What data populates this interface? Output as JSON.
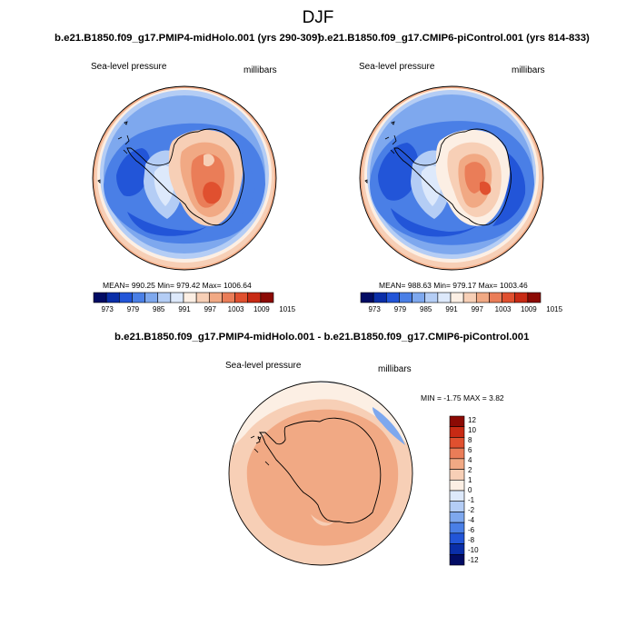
{
  "figure": {
    "title": "DJF"
  },
  "palette": {
    "full_field": [
      "#020c64",
      "#0a2ea8",
      "#2255d8",
      "#4a7fe6",
      "#7ea8ee",
      "#b4cdf5",
      "#dde9fb",
      "#fcefe4",
      "#f7cfb6",
      "#f1a984",
      "#ea7d58",
      "#e0502f",
      "#c82a14",
      "#8c0a04"
    ],
    "difference": [
      "#020c64",
      "#0a2ea8",
      "#2255d8",
      "#4a7fe6",
      "#7ea8ee",
      "#b4cdf5",
      "#dde9fb",
      "#fcefe4",
      "#f7cfb6",
      "#f1a984",
      "#ea7d58",
      "#e0502f",
      "#c82a14",
      "#8c0a04"
    ]
  },
  "panels": {
    "left": {
      "case_title": "b.e21.B1850.f09_g17.PMIP4-midHolo.001 (yrs 290-309)",
      "variable": "Sea-level pressure",
      "units": "millibars",
      "stats": "MEAN= 990.25  Min= 979.42  Max= 1006.64",
      "colorbar_labels": [
        "973",
        "979",
        "985",
        "991",
        "997",
        "1003",
        "1009",
        "1015"
      ]
    },
    "right": {
      "case_title": "b.e21.B1850.f09_g17.CMIP6-piControl.001 (yrs 814-833)",
      "variable": "Sea-level pressure",
      "units": "millibars",
      "stats": "MEAN= 988.63  Min= 979.17  Max= 1003.46",
      "colorbar_labels": [
        "973",
        "979",
        "985",
        "991",
        "997",
        "1003",
        "1009",
        "1015"
      ]
    },
    "difference": {
      "case_title": "b.e21.B1850.f09_g17.PMIP4-midHolo.001 - b.e21.B1850.f09_g17.CMIP6-piControl.001",
      "variable": "Sea-level pressure",
      "units": "millibars",
      "stats": "MIN = -1.75 MAX =   3.82",
      "colorbar_labels": [
        "12",
        "10",
        "8",
        "6",
        "4",
        "2",
        "1",
        "0",
        "-1",
        "-2",
        "-4",
        "-6",
        "-8",
        "-10",
        "-12"
      ]
    }
  }
}
